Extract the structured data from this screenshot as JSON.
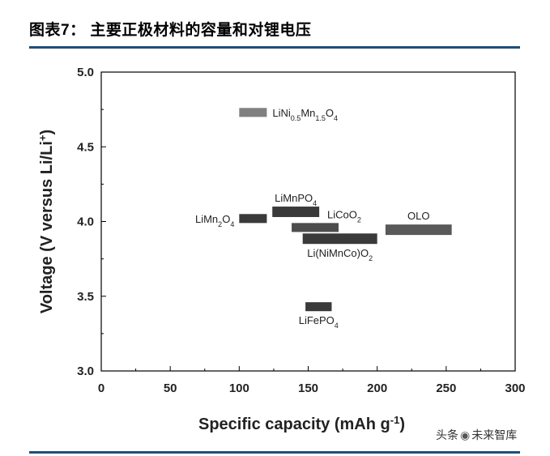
{
  "header": {
    "title": "图表7：  主要正极材料的容量和对锂电压"
  },
  "watermark": {
    "text_left": "头条",
    "icon": "wechat-icon",
    "text_right": "未来智库"
  },
  "chart_data": {
    "type": "bar",
    "subtype": "floating-range",
    "xlabel": "Specific capacity (mAh g",
    "xlabel_sup": "-1",
    "xlabel_end": ")",
    "ylabel": "Voltage (V versus Li/Li",
    "ylabel_sup": "+",
    "ylabel_end": ")",
    "xlim": [
      0,
      300
    ],
    "ylim": [
      3.0,
      5.0
    ],
    "xticks": [
      "0",
      "50",
      "100",
      "150",
      "200",
      "250",
      "300"
    ],
    "yticks": [
      "3.0",
      "3.5",
      "4.0",
      "4.5",
      "5.0"
    ],
    "grid": false,
    "series": [
      {
        "name": "LiNi0.5Mn1.5O4",
        "label_parts": [
          [
            "LiNi",
            ""
          ],
          [
            "0.5",
            "sub"
          ],
          [
            "Mn",
            ""
          ],
          [
            "1.5",
            "sub"
          ],
          [
            "O",
            ""
          ],
          [
            "4",
            "sub"
          ]
        ],
        "x_range": [
          100,
          120
        ],
        "y_range": [
          4.7,
          4.76
        ],
        "color": "#808080",
        "label_pos": "right"
      },
      {
        "name": "LiMnPO4",
        "label_parts": [
          [
            "LiMnPO",
            ""
          ],
          [
            "4",
            "sub"
          ]
        ],
        "x_range": [
          124,
          158
        ],
        "y_range": [
          4.03,
          4.1
        ],
        "color": "#3a3a3a",
        "label_pos": "above"
      },
      {
        "name": "LiMn2O4",
        "label_parts": [
          [
            "LiMn",
            ""
          ],
          [
            "2",
            "sub"
          ],
          [
            "O",
            ""
          ],
          [
            "4",
            "sub"
          ]
        ],
        "x_range": [
          100,
          120
        ],
        "y_range": [
          3.99,
          4.05
        ],
        "color": "#3a3a3a",
        "label_pos": "left"
      },
      {
        "name": "LiCoO2",
        "label_parts": [
          [
            "LiCoO",
            ""
          ],
          [
            "2",
            "sub"
          ]
        ],
        "x_range": [
          138,
          172
        ],
        "y_range": [
          3.93,
          3.99
        ],
        "color": "#4d4d4d",
        "label_pos": "right-above"
      },
      {
        "name": "OLO",
        "label_parts": [
          [
            "OLO",
            ""
          ]
        ],
        "x_range": [
          206,
          254
        ],
        "y_range": [
          3.91,
          3.98
        ],
        "color": "#595959",
        "label_pos": "above"
      },
      {
        "name": "Li(NiMnCo)O2",
        "label_parts": [
          [
            "Li(NiMnCo)O",
            ""
          ],
          [
            "2",
            "sub"
          ]
        ],
        "x_range": [
          146,
          200
        ],
        "y_range": [
          3.85,
          3.92
        ],
        "color": "#3a3a3a",
        "label_pos": "below"
      },
      {
        "name": "LiFePO4",
        "label_parts": [
          [
            "LiFePO",
            ""
          ],
          [
            "4",
            "sub"
          ]
        ],
        "x_range": [
          148,
          167
        ],
        "y_range": [
          3.4,
          3.46
        ],
        "color": "#3a3a3a",
        "label_pos": "below"
      }
    ]
  }
}
